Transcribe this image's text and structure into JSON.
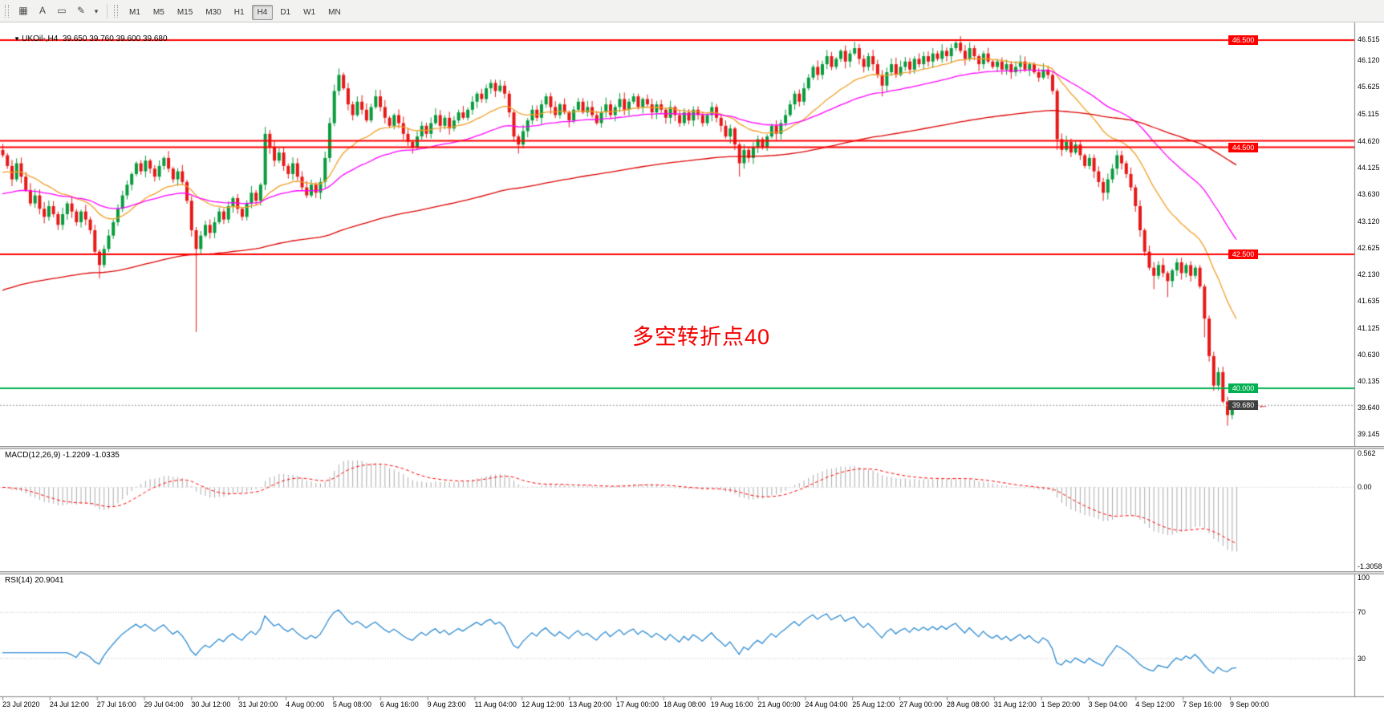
{
  "toolbar": {
    "left_icons": [
      {
        "name": "charts-grid-icon",
        "glyph": "▦"
      },
      {
        "name": "text-label-tool-icon",
        "glyph": "A"
      },
      {
        "name": "shape-tool-icon",
        "glyph": "▭"
      },
      {
        "name": "draw-tool-icon",
        "glyph": "✎"
      },
      {
        "name": "dropdown-caret-icon",
        "glyph": "▾"
      }
    ],
    "timeframes": [
      {
        "label": "M1",
        "active": false
      },
      {
        "label": "M5",
        "active": false
      },
      {
        "label": "M15",
        "active": false
      },
      {
        "label": "M30",
        "active": false
      },
      {
        "label": "H1",
        "active": false
      },
      {
        "label": "H4",
        "active": true
      },
      {
        "label": "D1",
        "active": false
      },
      {
        "label": "W1",
        "active": false
      },
      {
        "label": "MN",
        "active": false
      }
    ]
  },
  "main_chart": {
    "symbol": "UKOil-,H4",
    "ohlc": "39.650 39.760 39.600 39.680",
    "annotation": "多空转折点40",
    "price_axis_labels": [
      "46.515",
      "46.120",
      "45.625",
      "45.115",
      "44.620",
      "44.125",
      "43.630",
      "43.120",
      "42.625",
      "42.130",
      "41.635",
      "41.125",
      "40.630",
      "40.135",
      "39.640",
      "39.145"
    ],
    "levels": [
      {
        "value": 46.5,
        "label": "46.500",
        "color": "#FF0000",
        "badge": true
      },
      {
        "value": 44.62,
        "label": "44.620",
        "color": "#FF0000",
        "badge": false
      },
      {
        "value": 44.5,
        "label": "44.500",
        "color": "#FF0000",
        "badge": true
      },
      {
        "value": 42.5,
        "label": "42.500",
        "color": "#FF0000",
        "badge": true
      },
      {
        "value": 40.0,
        "label": "40.000",
        "color": "#00B050",
        "badge": true
      }
    ],
    "bid": {
      "value": 39.68,
      "label": "39.680",
      "badge_color": "#3F3F3F"
    }
  },
  "macd": {
    "label": "MACD(12,26,9) -1.2209 -1.0335",
    "axis_labels": [
      "0.562",
      "0.00",
      "-1.3058"
    ],
    "scale_max": 0.562,
    "scale_min": -1.3058
  },
  "rsi": {
    "label": "RSI(14) 20.9041",
    "axis_labels": [
      "100",
      "70",
      "30"
    ],
    "levels": [
      70,
      30
    ]
  },
  "time_axis": {
    "labels": [
      "23 Jul 2020",
      "24 Jul 12:00",
      "27 Jul 16:00",
      "29 Jul 04:00",
      "30 Jul 12:00",
      "31 Jul 20:00",
      "4 Aug 00:00",
      "5 Aug 08:00",
      "6 Aug 16:00",
      "9 Aug 23:00",
      "11 Aug 04:00",
      "12 Aug 12:00",
      "13 Aug 20:00",
      "17 Aug 00:00",
      "18 Aug 08:00",
      "19 Aug 16:00",
      "21 Aug 00:00",
      "24 Aug 04:00",
      "25 Aug 12:00",
      "27 Aug 00:00",
      "28 Aug 08:00",
      "31 Aug 12:00",
      "1 Sep 20:00",
      "3 Sep 04:00",
      "4 Sep 12:00",
      "7 Sep 16:00",
      "9 Sep 00:00"
    ]
  },
  "chart_data": {
    "type": "candlestick",
    "symbol": "UKOil-",
    "timeframe": "H4",
    "price_range": [
      39.145,
      46.515
    ],
    "last_candle_ohlc": {
      "open": 39.65,
      "high": 39.76,
      "low": 39.6,
      "close": 39.68
    },
    "indicators": [
      {
        "name": "MACD",
        "params": [
          12,
          26,
          9
        ],
        "values": [
          -1.2209,
          -1.0335
        ]
      },
      {
        "name": "RSI",
        "params": [
          14
        ],
        "value": 20.9041
      }
    ],
    "closes": [
      44.35,
      44.15,
      43.9,
      44.2,
      43.95,
      43.7,
      43.45,
      43.6,
      43.35,
      43.2,
      43.4,
      43.25,
      43.05,
      43.25,
      43.45,
      43.3,
      43.1,
      43.3,
      43.15,
      42.95,
      42.55,
      42.3,
      42.6,
      42.85,
      43.1,
      43.35,
      43.6,
      43.8,
      44.0,
      44.2,
      44.05,
      44.25,
      44.1,
      43.95,
      44.15,
      44.3,
      44.1,
      43.9,
      44.05,
      43.85,
      43.5,
      42.95,
      42.6,
      42.85,
      43.05,
      42.9,
      43.1,
      43.3,
      43.15,
      43.4,
      43.55,
      43.35,
      43.2,
      43.45,
      43.65,
      43.5,
      43.8,
      44.75,
      44.5,
      44.25,
      44.4,
      44.15,
      44.0,
      44.2,
      43.95,
      43.75,
      43.6,
      43.8,
      43.65,
      43.85,
      44.3,
      44.95,
      45.55,
      45.85,
      45.6,
      45.3,
      45.1,
      45.35,
      45.2,
      45.0,
      45.25,
      45.45,
      45.25,
      45.05,
      44.9,
      45.1,
      44.95,
      44.75,
      44.6,
      44.5,
      44.7,
      44.9,
      44.75,
      44.95,
      45.1,
      44.9,
      45.05,
      44.85,
      45.0,
      45.15,
      45.05,
      45.2,
      45.35,
      45.5,
      45.4,
      45.6,
      45.7,
      45.55,
      45.65,
      45.5,
      45.15,
      44.7,
      44.55,
      44.8,
      45.0,
      45.2,
      45.05,
      45.3,
      45.45,
      45.25,
      45.1,
      45.3,
      45.15,
      45.0,
      45.2,
      45.35,
      45.15,
      45.25,
      45.1,
      44.95,
      45.15,
      45.3,
      45.1,
      45.25,
      45.4,
      45.2,
      45.35,
      45.45,
      45.25,
      45.4,
      45.3,
      45.15,
      45.3,
      45.2,
      45.05,
      45.25,
      45.1,
      44.95,
      45.15,
      45.0,
      45.2,
      45.1,
      44.95,
      45.1,
      45.25,
      45.05,
      44.9,
      44.7,
      44.85,
      44.55,
      44.2,
      44.45,
      44.3,
      44.5,
      44.65,
      44.5,
      44.7,
      44.9,
      44.75,
      44.95,
      45.1,
      45.3,
      45.5,
      45.35,
      45.6,
      45.8,
      46.0,
      45.85,
      46.05,
      46.2,
      46.0,
      46.15,
      46.3,
      46.1,
      46.25,
      46.35,
      46.15,
      46.0,
      46.2,
      46.05,
      45.85,
      45.65,
      45.9,
      46.05,
      45.85,
      46.0,
      46.1,
      45.95,
      46.15,
      46.05,
      46.2,
      46.1,
      46.25,
      46.15,
      46.3,
      46.2,
      46.35,
      46.45,
      46.3,
      46.15,
      46.35,
      46.2,
      46.05,
      46.25,
      46.1,
      46.0,
      46.1,
      45.95,
      46.05,
      45.9,
      46.0,
      46.1,
      45.95,
      46.05,
      45.9,
      45.8,
      45.95,
      45.85,
      45.55,
      44.65,
      44.45,
      44.6,
      44.4,
      44.55,
      44.35,
      44.15,
      44.3,
      44.05,
      43.85,
      43.65,
      43.9,
      44.1,
      44.35,
      44.2,
      44.0,
      43.75,
      43.4,
      42.95,
      42.55,
      42.25,
      42.1,
      42.3,
      42.15,
      42.0,
      42.2,
      42.35,
      42.15,
      42.3,
      42.1,
      42.25,
      41.9,
      41.3,
      40.6,
      40.05,
      40.3,
      39.75,
      39.5,
      39.65,
      39.68
    ],
    "wick_overrides": {
      "21": {
        "low": 42.05
      },
      "42": {
        "low": 41.05
      },
      "57": {
        "high": 44.88,
        "low": 43.7
      },
      "73": {
        "high": 45.97
      },
      "112": {
        "low": 44.38
      },
      "160": {
        "low": 43.95
      },
      "185": {
        "high": 46.47
      },
      "191": {
        "low": 45.45
      },
      "207": {
        "high": 46.5
      },
      "229": {
        "low": 44.45
      },
      "239": {
        "low": 43.5
      },
      "250": {
        "low": 41.85
      },
      "253": {
        "low": 41.7
      },
      "261": {
        "low": 40.95
      },
      "266": {
        "low": 39.3
      },
      "268": {
        "high": 39.76,
        "low": 39.6
      }
    },
    "ma_periods": {
      "fast": 21,
      "mid": 50,
      "slow": 170
    },
    "ma_seeds": {
      "fast": 44.0,
      "mid": 43.6,
      "slow": 41.8
    },
    "colors": {
      "up": "#089B3C",
      "down": "#E81717",
      "ma_fast": "#F0A028",
      "ma_mid": "#FF00FF",
      "ma_slow": "#DD0000",
      "macd_hist": "#ABABAB",
      "macd_signal": "#FF0000",
      "rsi": "#2E8BD0",
      "level_dotted": "#BDBDBD",
      "bid_line": "#9B9B9B"
    }
  }
}
